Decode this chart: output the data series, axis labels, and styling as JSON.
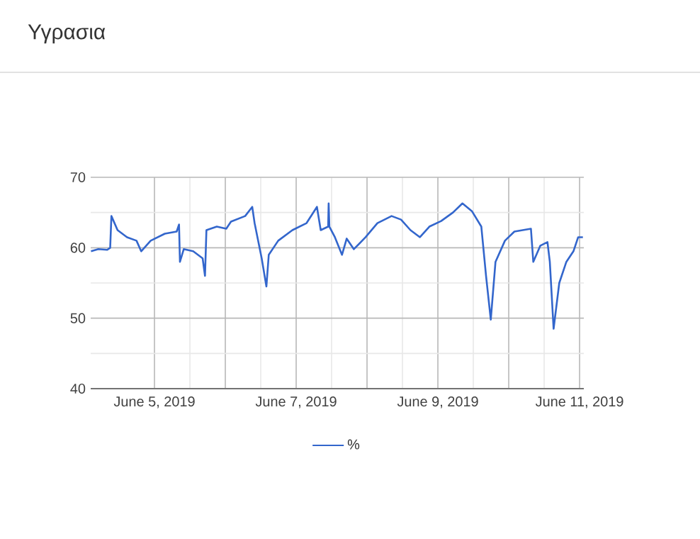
{
  "chart_data": {
    "type": "line",
    "title": "Υγρασια",
    "x": [
      "2019-06-04T02:30",
      "2019-06-04T05:00",
      "2019-06-04T08:00",
      "2019-06-04T09:00",
      "2019-06-04T09:25",
      "2019-06-04T11:30",
      "2019-06-04T14:42",
      "2019-06-04T17:55",
      "2019-06-04T19:30",
      "2019-06-04T22:43",
      "2019-06-05T03:31",
      "2019-06-05T07:31",
      "2019-06-05T08:19",
      "2019-06-05T08:38",
      "2019-06-05T09:55",
      "2019-06-05T13:07",
      "2019-06-05T16:19",
      "2019-06-05T17:07",
      "2019-06-05T17:36",
      "2019-06-05T21:07",
      "2019-06-06T00:19",
      "2019-06-06T01:55",
      "2019-06-06T06:43",
      "2019-06-06T09:07",
      "2019-06-06T09:55",
      "2019-06-06T12:19",
      "2019-06-06T13:55",
      "2019-06-06T14:43",
      "2019-06-06T17:55",
      "2019-06-06T22:43",
      "2019-06-07T03:31",
      "2019-06-07T07:02",
      "2019-06-07T08:19",
      "2019-06-07T10:50",
      "2019-06-07T11:00",
      "2019-06-07T11:15",
      "2019-06-07T13:07",
      "2019-06-07T15:31",
      "2019-06-07T17:07",
      "2019-06-07T19:31",
      "2019-06-07T23:31",
      "2019-06-08T03:31",
      "2019-06-08T08:19",
      "2019-06-08T11:31",
      "2019-06-08T14:43",
      "2019-06-08T17:55",
      "2019-06-08T21:07",
      "2019-06-09T01:07",
      "2019-06-09T05:07",
      "2019-06-09T08:19",
      "2019-06-09T11:31",
      "2019-06-09T14:43",
      "2019-06-09T16:19",
      "2019-06-09T17:55",
      "2019-06-09T19:31",
      "2019-06-09T22:43",
      "2019-06-10T01:55",
      "2019-06-10T07:31",
      "2019-06-10T08:19",
      "2019-06-10T10:43",
      "2019-06-10T13:07",
      "2019-06-10T13:55",
      "2019-06-10T15:12",
      "2019-06-10T17:07",
      "2019-06-10T19:31",
      "2019-06-10T21:55",
      "2019-06-10T23:31",
      "2019-06-11T01:07"
    ],
    "series": [
      {
        "name": "%",
        "color": "#3366cc",
        "values": [
          59.5,
          59.8,
          59.7,
          60.0,
          64.5,
          62.5,
          61.5,
          61.0,
          59.5,
          61.0,
          62.0,
          62.3,
          63.3,
          58.0,
          59.8,
          59.5,
          58.5,
          56.0,
          62.5,
          63.0,
          62.7,
          63.7,
          64.5,
          65.8,
          63.5,
          58.5,
          54.5,
          59.0,
          61.0,
          62.5,
          63.5,
          65.8,
          62.5,
          63.0,
          66.3,
          63.0,
          61.5,
          59.0,
          61.3,
          59.8,
          61.5,
          63.5,
          64.5,
          64.0,
          62.5,
          61.5,
          63.0,
          63.8,
          65.0,
          66.3,
          65.2,
          63.0,
          56.0,
          49.8,
          58.0,
          61.0,
          62.3,
          62.7,
          58.0,
          60.3,
          60.8,
          58.0,
          48.5,
          55.0,
          58.0,
          59.5,
          61.5,
          61.5
        ]
      }
    ],
    "xlim": [
      "2019-06-04T02:24",
      "2019-06-11T01:26"
    ],
    "xticks": [
      {
        "value": "2019-06-05",
        "label": "June 5, 2019"
      },
      {
        "value": "2019-06-06",
        "label": null
      },
      {
        "value": "2019-06-07",
        "label": "June 7, 2019"
      },
      {
        "value": "2019-06-08",
        "label": null
      },
      {
        "value": "2019-06-09",
        "label": "June 9, 2019"
      },
      {
        "value": "2019-06-10",
        "label": null
      },
      {
        "value": "2019-06-11",
        "label": "June 11, 2019"
      }
    ],
    "ylim": [
      40,
      70
    ],
    "yticks": [
      40,
      50,
      60,
      70
    ],
    "grid": true,
    "legend": "bottom"
  }
}
